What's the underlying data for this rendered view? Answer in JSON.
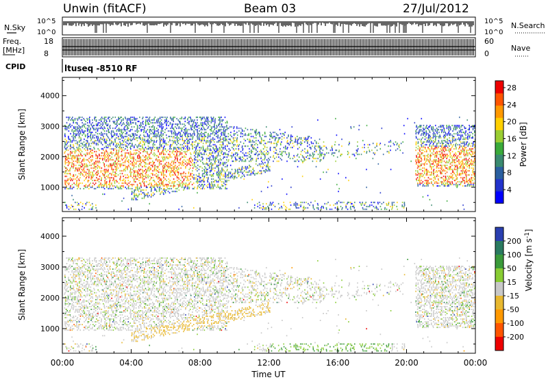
{
  "header": {
    "station": "Unwin (fitACF)",
    "beam": "Beam 03",
    "date": "27/Jul/2012"
  },
  "summary_panels": {
    "nsky_label": "N.Sky",
    "nsky_ticks": [
      "10^5",
      "10^0"
    ],
    "nsearch_label": "N.Search",
    "freq_label_line1": "Freq.",
    "freq_label_line2": "[MHz]",
    "freq_ticks": [
      "18",
      "8"
    ],
    "nave_label": "Nave",
    "nave_ticks": [
      "60",
      "0"
    ],
    "cpid_label": "CPID",
    "cpid_value": "ltuseq -8510 RF"
  },
  "chart_data": [
    {
      "type": "heatmap",
      "name": "Power",
      "xlabel": "Time UT",
      "ylabel": "Slant Range [km]",
      "x_ticks": [
        "00:00",
        "04:00",
        "08:00",
        "12:00",
        "16:00",
        "20:00",
        "00:00"
      ],
      "xlim_hours": [
        0,
        24
      ],
      "y_ticks": [
        1000,
        2000,
        3000,
        4000
      ],
      "ylim": [
        200,
        4600
      ],
      "colorbar": {
        "label": "Power [dB]",
        "ticks": [
          "4",
          "8",
          "12",
          "16",
          "20",
          "24",
          "28"
        ],
        "colors": [
          "#0000ff",
          "#2233cc",
          "#2a5fa0",
          "#3a8a70",
          "#3aaa3a",
          "#9acd32",
          "#ffd000",
          "#ff9900",
          "#ff5500",
          "#ee0000"
        ]
      }
    },
    {
      "type": "heatmap",
      "name": "Velocity",
      "xlabel": "Time UT",
      "ylabel": "Slant Range [km]",
      "x_ticks": [
        "00:00",
        "04:00",
        "08:00",
        "12:00",
        "16:00",
        "20:00",
        "00:00"
      ],
      "xlim_hours": [
        0,
        24
      ],
      "y_ticks": [
        1000,
        2000,
        3000,
        4000
      ],
      "ylim": [
        200,
        4600
      ],
      "colorbar": {
        "label": "Velocity [m s^-1]",
        "ticks": [
          "200",
          "100",
          "50",
          "15",
          "-15",
          "-50",
          "-100",
          "-200"
        ],
        "colors": [
          "#2a3fb0",
          "#2a7a60",
          "#3a9a3a",
          "#88cc33",
          "#c8c8c8",
          "#e8b830",
          "#ff9900",
          "#ff5500",
          "#ee0000"
        ]
      }
    }
  ]
}
